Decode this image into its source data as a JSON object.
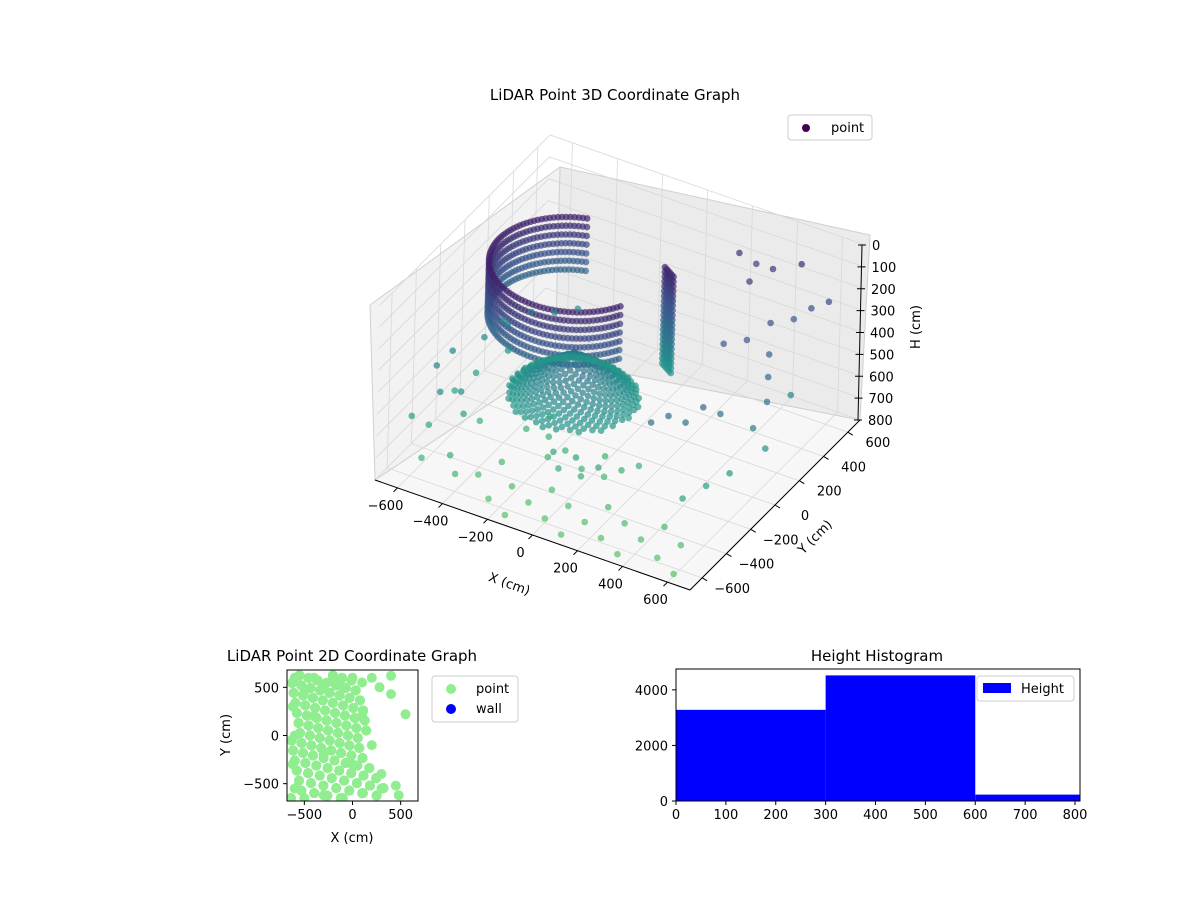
{
  "chart_data": [
    {
      "type": "scatter",
      "title": "LiDAR Point 3D Coordinate Graph",
      "xlabel": "X (cm)",
      "ylabel": "Y (cm)",
      "zlabel": "H (cm)",
      "xlim": [
        -700,
        700
      ],
      "ylim": [
        -700,
        700
      ],
      "zlim": [
        0,
        800
      ],
      "z_inverted": true,
      "x_ticks": [
        "−600",
        "−400",
        "−200",
        "0",
        "200",
        "400",
        "600"
      ],
      "y_ticks": [
        "−600",
        "−400",
        "−200",
        "0",
        "200",
        "400",
        "600"
      ],
      "z_ticks": [
        "0",
        "100",
        "200",
        "300",
        "400",
        "500",
        "600",
        "700",
        "800"
      ],
      "legend": {
        "position": "top-right",
        "entries": [
          {
            "label": "point",
            "color": "#440154"
          }
        ]
      },
      "grid": true,
      "series": [
        {
          "name": "point",
          "colormap": "viridis",
          "points": [
            [
              -650,
              -500,
              600
            ],
            [
              -600,
              -450,
              650
            ],
            [
              -550,
              -600,
              700
            ],
            [
              -500,
              -350,
              620
            ],
            [
              -450,
              -550,
              680
            ],
            [
              -620,
              -200,
              640
            ],
            [
              -580,
              -100,
              600
            ],
            [
              -520,
              50,
              560
            ],
            [
              -480,
              -250,
              700
            ],
            [
              -400,
              -600,
              720
            ],
            [
              -350,
              -500,
              760
            ],
            [
              -300,
              -400,
              740
            ],
            [
              -250,
              -600,
              780
            ],
            [
              -200,
              -500,
              760
            ],
            [
              -150,
              -650,
              790
            ],
            [
              -100,
              -550,
              770
            ],
            [
              -50,
              -450,
              750
            ],
            [
              0,
              -600,
              780
            ],
            [
              50,
              -500,
              760
            ],
            [
              100,
              -650,
              790
            ],
            [
              150,
              -550,
              770
            ],
            [
              200,
              -450,
              740
            ],
            [
              250,
              -600,
              780
            ],
            [
              300,
              -500,
              750
            ],
            [
              350,
              -650,
              790
            ],
            [
              400,
              -550,
              760
            ],
            [
              450,
              -450,
              740
            ],
            [
              500,
              -600,
              780
            ],
            [
              550,
              -500,
              760
            ],
            [
              600,
              -650,
              790
            ],
            [
              -600,
              0,
              500
            ],
            [
              -550,
              100,
              480
            ],
            [
              -500,
              200,
              460
            ],
            [
              -450,
              300,
              500
            ],
            [
              -400,
              400,
              520
            ],
            [
              -650,
              -300,
              480
            ],
            [
              -580,
              -400,
              520
            ],
            [
              -620,
              200,
              540
            ],
            [
              -660,
              -150,
              500
            ],
            [
              -540,
              -300,
              560
            ],
            [
              300,
              -300,
              400
            ],
            [
              350,
              -250,
              380
            ],
            [
              400,
              -200,
              420
            ],
            [
              450,
              -150,
              360
            ],
            [
              500,
              -100,
              400
            ],
            [
              350,
              200,
              300
            ],
            [
              400,
              300,
              320
            ],
            [
              450,
              400,
              280
            ],
            [
              500,
              500,
              300
            ],
            [
              550,
              550,
              260
            ],
            [
              600,
              600,
              240
            ],
            [
              300,
              500,
              200
            ],
            [
              350,
              600,
              180
            ],
            [
              250,
              650,
              220
            ],
            [
              200,
              600,
              160
            ],
            [
              450,
              650,
              150
            ],
            [
              500,
              300,
              350
            ],
            [
              550,
              200,
              380
            ],
            [
              600,
              100,
              420
            ],
            [
              620,
              -50,
              450
            ],
            [
              -200,
              -200,
              700
            ],
            [
              -150,
              -300,
              720
            ],
            [
              -100,
              -250,
              700
            ],
            [
              0,
              -300,
              720
            ],
            [
              50,
              -200,
              700
            ],
            [
              100,
              -300,
              720
            ],
            [
              150,
              -250,
              700
            ],
            [
              -250,
              -100,
              680
            ],
            [
              -300,
              -200,
              700
            ],
            [
              200,
              -200,
              690
            ],
            [
              500,
              -400,
              620
            ],
            [
              550,
              -300,
              600
            ],
            [
              600,
              -200,
              580
            ],
            [
              650,
              0,
              560
            ],
            [
              600,
              300,
              500
            ],
            [
              -100,
              -350,
              650
            ],
            [
              0,
              -350,
              640
            ],
            [
              100,
              -350,
              650
            ],
            [
              -50,
              -400,
              680
            ],
            [
              50,
              -400,
              680
            ]
          ],
          "color_by": "H",
          "cloud_note": ""
        }
      ]
    },
    {
      "type": "scatter",
      "title": "LiDAR Point 2D Coordinate Graph",
      "xlabel": "X (cm)",
      "ylabel": "Y (cm)",
      "xlim": [
        -680,
        680
      ],
      "ylim": [
        -680,
        680
      ],
      "x_ticks": [
        "−500",
        "0",
        "500"
      ],
      "y_ticks": [
        "−500",
        "0",
        "500"
      ],
      "legend": {
        "position": "outside-right",
        "entries": [
          {
            "label": "point",
            "color": "#90ee90"
          },
          {
            "label": "wall",
            "color": "#0000ff"
          }
        ]
      },
      "series": [
        {
          "name": "point",
          "color": "#90ee90",
          "points": [
            [
              -600,
              600
            ],
            [
              -500,
              450
            ],
            [
              -400,
              600
            ],
            [
              -300,
              500
            ],
            [
              -200,
              600
            ],
            [
              -100,
              500
            ],
            [
              0,
              600
            ],
            [
              100,
              550
            ],
            [
              200,
              600
            ],
            [
              280,
              500
            ],
            [
              400,
              620
            ],
            [
              400,
              430
            ],
            [
              550,
              220
            ],
            [
              -620,
              300
            ],
            [
              -600,
              0
            ],
            [
              -620,
              -300
            ],
            [
              -600,
              -550
            ],
            [
              -500,
              -650
            ],
            [
              -300,
              -620
            ],
            [
              -100,
              -650
            ],
            [
              100,
              -600
            ],
            [
              300,
              -550
            ],
            [
              450,
              -520
            ],
            [
              480,
              -620
            ],
            [
              -400,
              200
            ],
            [
              -300,
              -200
            ],
            [
              0,
              -300
            ],
            [
              200,
              -100
            ],
            [
              300,
              -400
            ],
            [
              100,
              200
            ]
          ]
        },
        {
          "name": "wall",
          "color": "#0000ff",
          "points": []
        }
      ]
    },
    {
      "type": "bar",
      "title": "Height Histogram",
      "xlabel": "",
      "ylabel": "",
      "xlim": [
        0,
        810
      ],
      "ylim": [
        0,
        4750
      ],
      "x_ticks": [
        "0",
        "100",
        "200",
        "300",
        "400",
        "500",
        "600",
        "700",
        "800"
      ],
      "y_ticks": [
        "0",
        "2000",
        "4000"
      ],
      "legend": {
        "position": "top-right",
        "entries": [
          {
            "label": "Height",
            "color": "#0000ff"
          }
        ]
      },
      "series": [
        {
          "name": "Height",
          "color": "#0000ff",
          "bins": [
            {
              "start": 0,
              "end": 300,
              "count": 3280
            },
            {
              "start": 300,
              "end": 600,
              "count": 4520
            },
            {
              "start": 600,
              "end": 810,
              "count": 230
            }
          ]
        }
      ]
    }
  ]
}
